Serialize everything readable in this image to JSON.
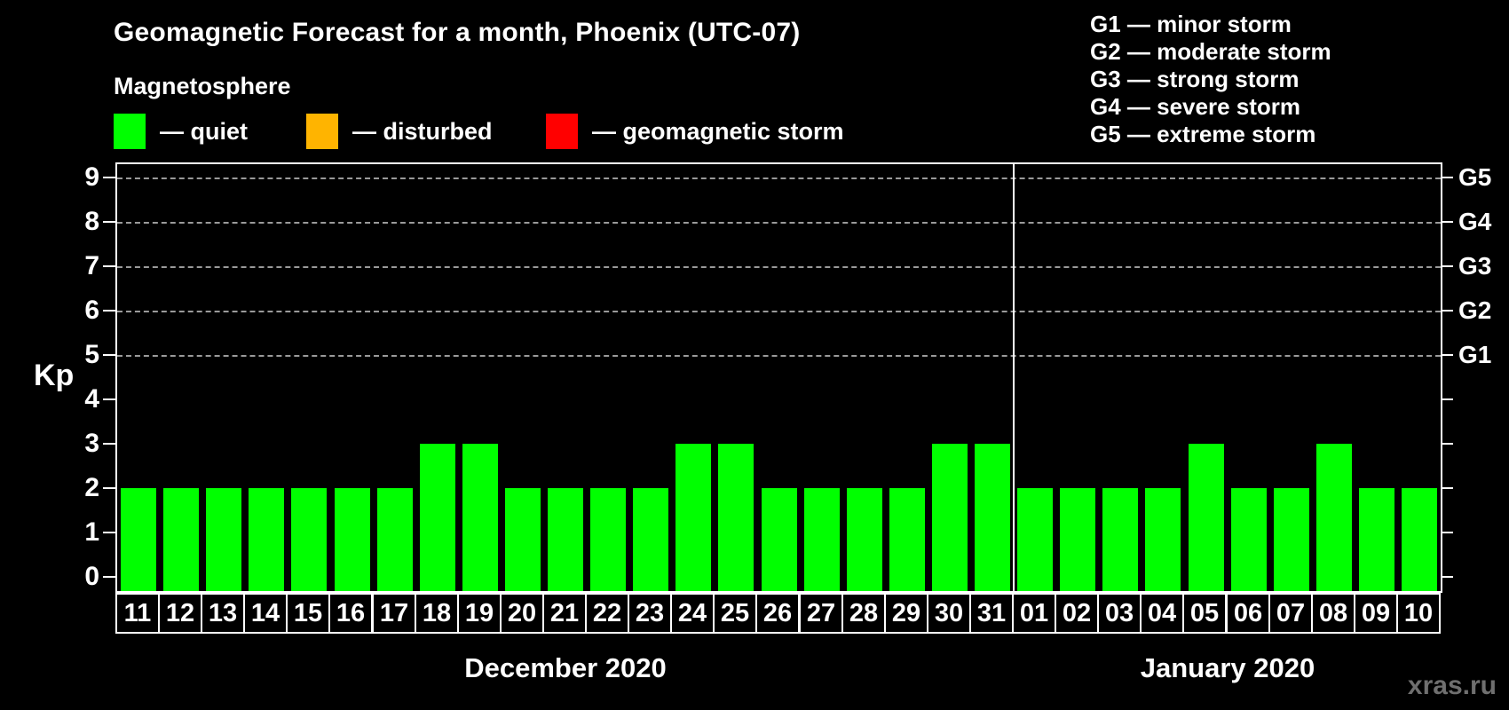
{
  "title": "Geomagnetic Forecast for a month, Phoenix (UTC-07)",
  "subtitle": "Magnetosphere",
  "legend": {
    "items": [
      {
        "name": "quiet",
        "label": "— quiet",
        "color": "#00ff00"
      },
      {
        "name": "disturbed",
        "label": "— disturbed",
        "color": "#ffb400"
      },
      {
        "name": "geomagnetic-storm",
        "label": "— geomagnetic storm",
        "color": "#ff0000"
      }
    ]
  },
  "g_scale_legend": [
    "G1 — minor storm",
    "G2 — moderate storm",
    "G3 — strong storm",
    "G4 — severe storm",
    "G5 — extreme storm"
  ],
  "watermark": "xras.ru",
  "colors": {
    "background": "#000000",
    "axis": "#ffffff",
    "grid": "#9a9a9a",
    "bar_quiet": "#00ff00",
    "bar_disturbed": "#ffb400",
    "bar_storm": "#ff0000",
    "watermark": "#6f6f6f"
  },
  "chart_data": {
    "type": "bar",
    "title": "Geomagnetic Forecast for a month, Phoenix (UTC-07)",
    "ylabel": "Kp",
    "ylim": [
      0,
      9
    ],
    "yticks": [
      0,
      1,
      2,
      3,
      4,
      5,
      6,
      7,
      8,
      9
    ],
    "grid": "dashed horizontal gridlines at Kp 5,6,7,8,9",
    "legend_position": "top-left and top-right",
    "right_axis": [
      {
        "label": "G1",
        "kp": 5
      },
      {
        "label": "G2",
        "kp": 6
      },
      {
        "label": "G3",
        "kp": 7
      },
      {
        "label": "G4",
        "kp": 8
      },
      {
        "label": "G5",
        "kp": 9
      }
    ],
    "months": [
      {
        "label": "December 2020",
        "categories": [
          "11",
          "12",
          "13",
          "14",
          "15",
          "16",
          "17",
          "18",
          "19",
          "20",
          "21",
          "22",
          "23",
          "24",
          "25",
          "26",
          "27",
          "28",
          "29",
          "30",
          "31"
        ],
        "values": [
          2,
          2,
          2,
          2,
          2,
          2,
          2,
          3,
          3,
          2,
          2,
          2,
          2,
          3,
          3,
          2,
          2,
          2,
          2,
          3,
          3
        ]
      },
      {
        "label": "January 2020",
        "categories": [
          "01",
          "02",
          "03",
          "04",
          "05",
          "06",
          "07",
          "08",
          "09",
          "10"
        ],
        "values": [
          2,
          2,
          2,
          2,
          3,
          2,
          2,
          3,
          2,
          2
        ]
      }
    ]
  }
}
